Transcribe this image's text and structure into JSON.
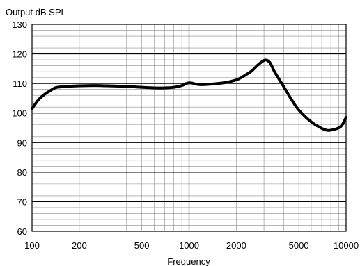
{
  "chart_data": {
    "type": "line",
    "title": "",
    "ylabel": "Output dB SPL",
    "xlabel": "Frequency",
    "x_scale": "log",
    "xlim": [
      100,
      10000
    ],
    "ylim": [
      60,
      130
    ],
    "x_tick_labels": [
      {
        "value": 100,
        "label": "100"
      },
      {
        "value": 200,
        "label": "200"
      },
      {
        "value": 500,
        "label": "500"
      },
      {
        "value": 1000,
        "label": "1000"
      },
      {
        "value": 2000,
        "label": "2000"
      },
      {
        "value": 5000,
        "label": "5000"
      },
      {
        "value": 10000,
        "label": "10000"
      }
    ],
    "y_tick_labels": [
      {
        "value": 60,
        "label": "60"
      },
      {
        "value": 70,
        "label": "70"
      },
      {
        "value": 80,
        "label": "80"
      },
      {
        "value": 90,
        "label": "90"
      },
      {
        "value": 100,
        "label": "100"
      },
      {
        "value": 110,
        "label": "110"
      },
      {
        "value": 120,
        "label": "120"
      },
      {
        "value": 130,
        "label": "130"
      }
    ],
    "grid": true,
    "series": [
      {
        "color": "#000000",
        "x": [
          100,
          110,
          120,
          130,
          140,
          150,
          170,
          200,
          250,
          300,
          400,
          500,
          600,
          700,
          800,
          900,
          950,
          1000,
          1050,
          1100,
          1200,
          1400,
          1700,
          2000,
          2200,
          2500,
          2750,
          3000,
          3150,
          3300,
          3500,
          4000,
          4500,
          5000,
          6000,
          7000,
          7500,
          8000,
          9000,
          9500,
          10000
        ],
        "y": [
          101.5,
          104.5,
          106.3,
          107.5,
          108.5,
          108.8,
          109.0,
          109.2,
          109.3,
          109.2,
          109.0,
          108.7,
          108.5,
          108.5,
          108.7,
          109.3,
          109.9,
          110.2,
          110.1,
          109.8,
          109.6,
          109.8,
          110.3,
          111.2,
          112.3,
          114.2,
          116.3,
          117.8,
          117.8,
          116.8,
          114.0,
          109.0,
          104.5,
          101.0,
          97.0,
          94.8,
          94.2,
          94.2,
          95.0,
          96.2,
          98.5
        ]
      }
    ]
  }
}
